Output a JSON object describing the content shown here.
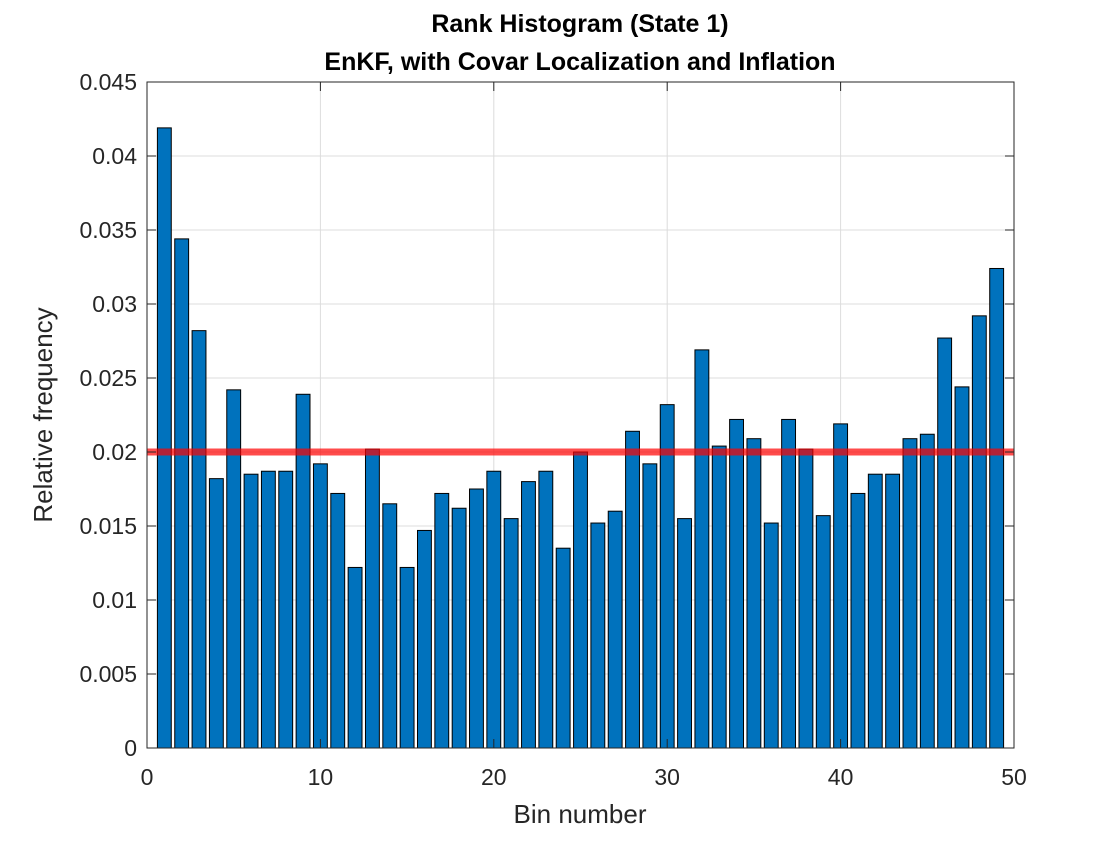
{
  "chart_data": {
    "type": "bar",
    "title": [
      "Rank Histogram (State 1)",
      "EnKF, with Covar Localization and Inflation"
    ],
    "xlabel": "Bin number",
    "ylabel": "Relative frequency",
    "xlim": [
      0,
      50
    ],
    "ylim": [
      0,
      0.045
    ],
    "xticks": [
      0,
      10,
      20,
      30,
      40,
      50
    ],
    "xtick_labels": [
      "0",
      "10",
      "20",
      "30",
      "40",
      "50"
    ],
    "yticks": [
      0,
      0.005,
      0.01,
      0.015,
      0.02,
      0.025,
      0.03,
      0.035,
      0.04,
      0.045
    ],
    "ytick_labels": [
      "0",
      "0.005",
      "0.01",
      "0.015",
      "0.02",
      "0.025",
      "0.03",
      "0.035",
      "0.04",
      "0.045"
    ],
    "grid": true,
    "box": true,
    "bar_width": 0.8,
    "bar_color": "#0072BD",
    "bar_edge_color": "#000000",
    "reference_line": {
      "y": 0.02,
      "color": "#FF0000",
      "opacity": 0.7
    },
    "x": [
      1,
      2,
      3,
      4,
      5,
      6,
      7,
      8,
      9,
      10,
      11,
      12,
      13,
      14,
      15,
      16,
      17,
      18,
      19,
      20,
      21,
      22,
      23,
      24,
      25,
      26,
      27,
      28,
      29,
      30,
      31,
      32,
      33,
      34,
      35,
      36,
      37,
      38,
      39,
      40,
      41,
      42,
      43,
      44,
      45,
      46,
      47,
      48,
      49
    ],
    "values": [
      0.0419,
      0.0344,
      0.0282,
      0.0182,
      0.0242,
      0.0185,
      0.0187,
      0.0187,
      0.0239,
      0.0192,
      0.0172,
      0.0122,
      0.0202,
      0.0165,
      0.0122,
      0.0147,
      0.0172,
      0.0162,
      0.0175,
      0.0187,
      0.0155,
      0.018,
      0.0187,
      0.0135,
      0.02,
      0.0152,
      0.016,
      0.0214,
      0.0192,
      0.0232,
      0.0155,
      0.0269,
      0.0204,
      0.0222,
      0.0209,
      0.0152,
      0.0222,
      0.0202,
      0.0157,
      0.0219,
      0.0172,
      0.0185,
      0.0185,
      0.0209,
      0.0212,
      0.0277,
      0.0244,
      0.0292,
      0.0324
    ]
  }
}
